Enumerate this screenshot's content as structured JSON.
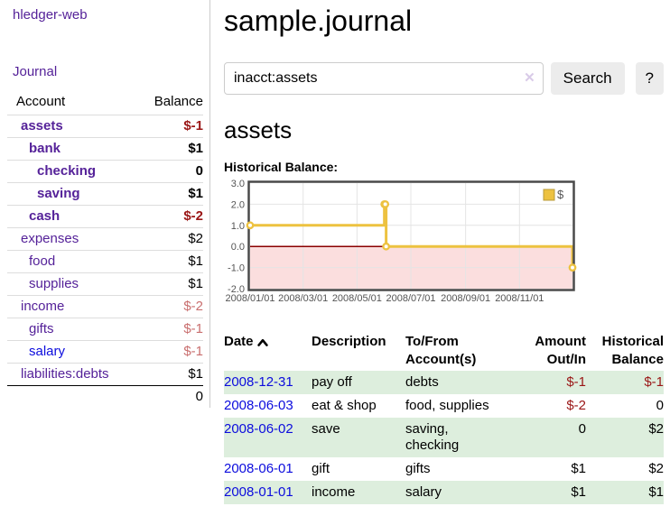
{
  "app": {
    "title": "hledger-web"
  },
  "colors": {
    "link_purple": "#552299",
    "link_blue": "#0c0cdd",
    "negative_dark": "#9a1616",
    "negative_soft": "#c96f6f",
    "stripe_green": "#ddeedd"
  },
  "sidebar": {
    "journal_link": "Journal",
    "accounts_table": {
      "headers": [
        "Account",
        "Balance"
      ],
      "rows": [
        {
          "name": "assets",
          "balance": "$-1",
          "name_class": "acct ind1 cur",
          "bal_class": "amt strong neg"
        },
        {
          "name": "bank",
          "balance": "$1",
          "name_class": "acct ind2 cur",
          "bal_class": "amt strong"
        },
        {
          "name": "checking",
          "balance": "0",
          "name_class": "acct ind3 cur",
          "bal_class": "amt strong"
        },
        {
          "name": "saving",
          "balance": "$1",
          "name_class": "acct ind3 cur",
          "bal_class": "amt strong"
        },
        {
          "name": "cash",
          "balance": "$-2",
          "name_class": "acct ind2 cur",
          "bal_class": "amt strong neg"
        },
        {
          "name": "expenses",
          "balance": "$2",
          "name_class": "acct ind1",
          "bal_class": "amt"
        },
        {
          "name": "food",
          "balance": "$1",
          "name_class": "acct ind2",
          "bal_class": "amt"
        },
        {
          "name": "supplies",
          "balance": "$1",
          "name_class": "acct ind2",
          "bal_class": "amt"
        },
        {
          "name": "income",
          "balance": "$-2",
          "name_class": "acct ind1",
          "bal_class": "amt softneg"
        },
        {
          "name": "gifts",
          "balance": "$-1",
          "name_class": "acct ind2",
          "bal_class": "amt softneg"
        },
        {
          "name": "salary",
          "balance": "$-1",
          "name_class": "acct ind2 unvisited",
          "bal_class": "amt softneg"
        },
        {
          "name": "liabilities:debts",
          "balance": "$1",
          "name_class": "acct ind1",
          "bal_class": "amt"
        }
      ],
      "total": "0"
    }
  },
  "main": {
    "title": "sample.journal",
    "search": {
      "value": "inacct:assets",
      "clear_icon": "✕",
      "button_label": "Search",
      "help_label": "?"
    },
    "account_heading": "assets",
    "section_label": "Historical Balance:",
    "register": {
      "headers": [
        "Date",
        "Description",
        "To/From Account(s)",
        "Amount Out/In",
        "Historical Balance"
      ],
      "rows": [
        {
          "date": "2008-12-31",
          "description": "pay off",
          "accounts": "debts",
          "amount": "$-1",
          "balance": "$-1",
          "row_class": "striped",
          "amount_class": "ar neg",
          "balance_class": "ar neg"
        },
        {
          "date": "2008-06-03",
          "description": "eat & shop",
          "accounts": "food, supplies",
          "amount": "$-2",
          "balance": "0",
          "row_class": "",
          "amount_class": "ar neg",
          "balance_class": "ar"
        },
        {
          "date": "2008-06-02",
          "description": "save",
          "accounts": "saving,\nchecking",
          "amount": "0",
          "balance": "$2",
          "row_class": "striped",
          "amount_class": "ar",
          "balance_class": "ar"
        },
        {
          "date": "2008-06-01",
          "description": "gift",
          "accounts": "gifts",
          "amount": "$1",
          "balance": "$2",
          "row_class": "",
          "amount_class": "ar",
          "balance_class": "ar"
        },
        {
          "date": "2008-01-01",
          "description": "income",
          "accounts": "salary",
          "amount": "$1",
          "balance": "$1",
          "row_class": "striped",
          "amount_class": "ar",
          "balance_class": "ar"
        }
      ]
    }
  },
  "chart_data": {
    "type": "line",
    "step": true,
    "title": "Historical Balance",
    "series": [
      {
        "name": "$",
        "color": "#edc240",
        "points": [
          [
            "2008-01-01",
            1
          ],
          [
            "2008-06-01",
            2
          ],
          [
            "2008-06-02",
            2
          ],
          [
            "2008-06-03",
            0
          ],
          [
            "2008-12-31",
            -1
          ]
        ]
      }
    ],
    "x_range": [
      "2008-01-01",
      "2008-12-31"
    ],
    "y_range": [
      -2,
      3
    ],
    "x_ticks": [
      "2008/01/01",
      "2008/03/01",
      "2008/05/01",
      "2008/07/01",
      "2008/09/01",
      "2008/11/01"
    ],
    "y_ticks": [
      3.0,
      2.0,
      1.0,
      0.0,
      -1.0,
      -2.0
    ],
    "grid": true,
    "negative_region_color": "#fbdede",
    "zero_line_color": "#8b0000",
    "border_color": "#4a4a4a",
    "axis_text_color": "#545454",
    "legend": {
      "label": "$",
      "position": "top-right"
    }
  }
}
